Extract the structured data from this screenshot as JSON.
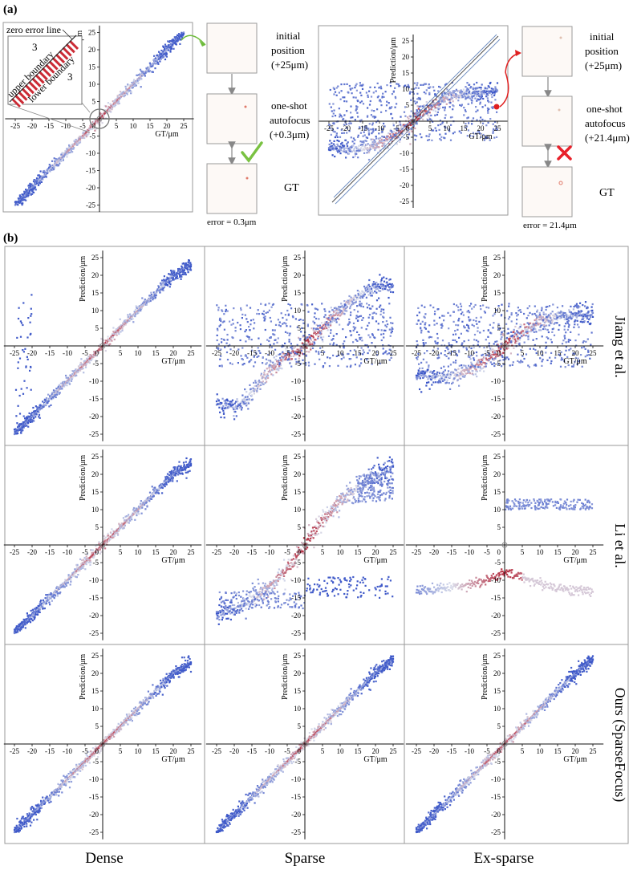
{
  "panel_a_label": "(a)",
  "panel_b_label": "(b)",
  "inset_labels": {
    "zero_error_line": "zero error line",
    "upper_boundary": "upper boundary",
    "lower_boundary": "lower boundary",
    "band_value_top": "3",
    "band_value_bottom": "3"
  },
  "workflow_good": {
    "initial": [
      "initial",
      "position",
      "(+25μm)"
    ],
    "oneshot": [
      "one-shot",
      "autofocus",
      "(+0.3μm)"
    ],
    "gt": "GT",
    "error": "error = 0.3μm",
    "result_icon": "check-icon"
  },
  "workflow_bad": {
    "initial": [
      "initial",
      "position",
      "(+25μm)"
    ],
    "oneshot": [
      "one-shot",
      "autofocus",
      "(+21.4μm)"
    ],
    "gt": "GT",
    "error": "error = 21.4μm",
    "result_icon": "cross-icon"
  },
  "row_labels": [
    "Jiang et al.",
    "Li et al.",
    "Ours (SparseFocus)"
  ],
  "column_labels": [
    "Dense",
    "Sparse",
    "Ex-sparse"
  ],
  "axis": {
    "xlabel": "GT/μm",
    "ylabel": "Prediction/μm",
    "x_ticks": [
      "-25",
      "-20",
      "-15",
      "-10",
      "-5",
      "0",
      "5",
      "10",
      "15",
      "20",
      "25"
    ],
    "y_ticks": [
      "-25",
      "-20",
      "-15",
      "-10",
      "-5",
      "0",
      "5",
      "10",
      "15",
      "20",
      "25"
    ]
  },
  "colors": {
    "low_density": "#3a55c8",
    "mid_density": "#d9dcea",
    "high_density": "#b2182b",
    "frame": "#9a9a9a"
  },
  "chart_data": [
    {
      "type": "scatter",
      "xlabel": "GT/μm",
      "ylabel": "Prediction/μm",
      "xlim": [
        -25,
        25
      ],
      "ylim": [
        -25,
        25
      ],
      "colormap": "coolwarm",
      "pattern": "diagonal",
      "x": [
        -25,
        -20,
        -15,
        -10,
        -5,
        0,
        5,
        10,
        15,
        20,
        25
      ],
      "y": [
        -25,
        -20,
        -15,
        -10,
        -5,
        0,
        5,
        10,
        15,
        20,
        25
      ]
    },
    {
      "type": "scatter",
      "xlabel": "GT/μm",
      "ylabel": "Prediction/μm",
      "xlim": [
        -25,
        25
      ],
      "ylim": [
        -25,
        25
      ],
      "colormap": "coolwarm",
      "pattern": "sigmoid_with_noise_band",
      "x": [
        -25,
        -20,
        -15,
        -10,
        -5,
        0,
        5,
        10,
        15,
        20,
        25
      ],
      "y": [
        -8,
        -9,
        -8.5,
        -7,
        -4,
        0,
        4,
        7,
        8.5,
        9,
        9
      ]
    },
    {
      "type": "scatter",
      "xlabel": "GT/μm",
      "ylabel": "Prediction/μm",
      "xlim": [
        -25,
        25
      ],
      "ylim": [
        -25,
        25
      ],
      "colormap": "coolwarm",
      "pattern": "diagonal_with_outliers",
      "x": [
        -25,
        -20,
        -15,
        -10,
        -5,
        0,
        5,
        10,
        15,
        20,
        25
      ],
      "y": [
        -25,
        -20,
        -15,
        -10,
        -5,
        0,
        5,
        10,
        15,
        20,
        23
      ]
    },
    {
      "type": "scatter",
      "xlabel": "GT/μm",
      "ylabel": "Prediction/μm",
      "xlim": [
        -25,
        25
      ],
      "ylim": [
        -25,
        25
      ],
      "colormap": "coolwarm",
      "pattern": "sigmoid_with_noise_band",
      "x": [
        -25,
        -20,
        -15,
        -10,
        -5,
        0,
        5,
        10,
        15,
        20,
        25
      ],
      "y": [
        -16,
        -18,
        -14,
        -7,
        -3,
        0,
        5,
        10,
        14,
        17,
        17
      ]
    },
    {
      "type": "scatter",
      "xlabel": "GT/μm",
      "ylabel": "Prediction/μm",
      "xlim": [
        -25,
        25
      ],
      "ylim": [
        -25,
        25
      ],
      "colormap": "coolwarm",
      "pattern": "sigmoid_with_noise_band",
      "x": [
        -25,
        -20,
        -15,
        -10,
        -5,
        0,
        5,
        10,
        15,
        20,
        25
      ],
      "y": [
        -8,
        -9,
        -8.5,
        -7,
        -4,
        0,
        4,
        7,
        8.5,
        9,
        9
      ]
    },
    {
      "type": "scatter",
      "xlabel": "GT/μm",
      "ylabel": "Prediction/μm",
      "xlim": [
        -25,
        25
      ],
      "ylim": [
        -25,
        25
      ],
      "colormap": "coolwarm",
      "pattern": "diagonal",
      "x": [
        -25,
        -20,
        -15,
        -10,
        -5,
        0,
        5,
        10,
        15,
        20,
        25
      ],
      "y": [
        -25,
        -20,
        -15,
        -10,
        -5,
        0,
        5,
        10,
        15,
        20,
        23
      ]
    },
    {
      "type": "scatter",
      "xlabel": "GT/μm",
      "ylabel": "Prediction/μm",
      "xlim": [
        -25,
        25
      ],
      "ylim": [
        -25,
        25
      ],
      "colormap": "coolwarm",
      "pattern": "split_branches",
      "x": [
        -25,
        -20,
        -15,
        -10,
        -5,
        0,
        5,
        10,
        15,
        20,
        25
      ],
      "y": [
        -20,
        -18,
        -15,
        -12,
        -7,
        0,
        7,
        12,
        16,
        20,
        22
      ]
    },
    {
      "type": "scatter",
      "xlabel": "GT/μm",
      "ylabel": "Prediction/μm",
      "xlim": [
        -25,
        25
      ],
      "ylim": [
        -25,
        25
      ],
      "colormap": "coolwarm",
      "pattern": "flat_branches",
      "x": [
        -25,
        -20,
        -15,
        -10,
        -5,
        0,
        5,
        10,
        15,
        20,
        25
      ],
      "y": [
        -13,
        -12.5,
        -12,
        -11,
        -10,
        -8,
        -9,
        -11,
        -12,
        -13,
        -13
      ]
    },
    {
      "type": "scatter",
      "xlabel": "GT/μm",
      "ylabel": "Prediction/μm",
      "xlim": [
        -25,
        25
      ],
      "ylim": [
        -25,
        25
      ],
      "colormap": "coolwarm",
      "pattern": "diagonal",
      "x": [
        -25,
        -20,
        -15,
        -10,
        -5,
        0,
        5,
        10,
        15,
        20,
        25
      ],
      "y": [
        -25,
        -20,
        -15,
        -10,
        -5,
        0,
        5,
        10,
        15,
        20,
        23
      ]
    },
    {
      "type": "scatter",
      "xlabel": "GT/μm",
      "ylabel": "Prediction/μm",
      "xlim": [
        -25,
        25
      ],
      "ylim": [
        -25,
        25
      ],
      "colormap": "coolwarm",
      "pattern": "diagonal",
      "x": [
        -25,
        -20,
        -15,
        -10,
        -5,
        0,
        5,
        10,
        15,
        20,
        25
      ],
      "y": [
        -25,
        -20,
        -15,
        -10,
        -5,
        0,
        5,
        10,
        15,
        20,
        24
      ]
    },
    {
      "type": "scatter",
      "xlabel": "GT/μm",
      "ylabel": "Prediction/μm",
      "xlim": [
        -25,
        25
      ],
      "ylim": [
        -25,
        25
      ],
      "colormap": "coolwarm",
      "pattern": "diagonal",
      "x": [
        -25,
        -20,
        -15,
        -10,
        -5,
        0,
        5,
        10,
        15,
        20,
        25
      ],
      "y": [
        -25,
        -20,
        -15,
        -10,
        -5,
        0,
        5,
        10,
        15,
        20,
        24
      ]
    }
  ]
}
